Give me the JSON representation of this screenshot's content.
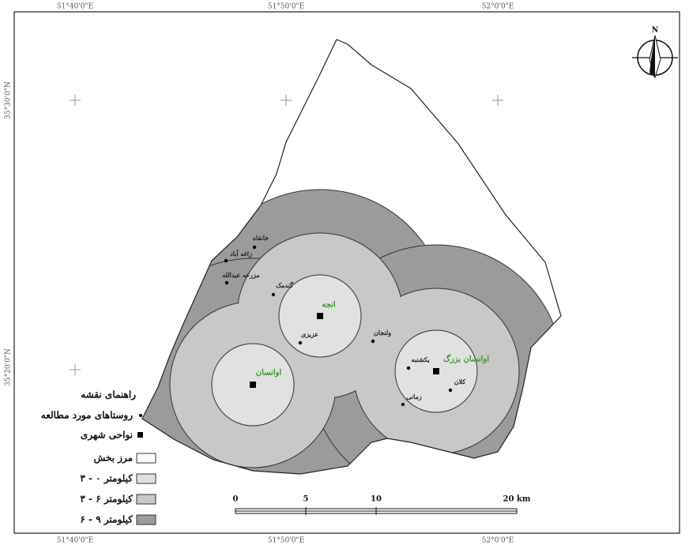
{
  "coordinates": {
    "top": [
      "51°40'0\"E",
      "51°50'0\"E",
      "52°0'0\"E"
    ],
    "bottom": [
      "51°40'0\"E",
      "51°50'0\"E",
      "52°0'0\"E"
    ],
    "left": [
      "35°30'0\"N",
      "35°20'0\"N"
    ]
  },
  "north_label": "N",
  "places": {
    "towns": [
      "انجه",
      "اوانسان",
      "اوانسان بزرگ"
    ],
    "villages": [
      "خانقاه",
      "زاغه آباد",
      "مزرعه عبدالله",
      "گندمک",
      "عزیزی",
      "ولنجان",
      "یکشنبه",
      "کلان",
      "زمانی"
    ]
  },
  "legend": {
    "title": "راهنمای نقشه",
    "items": [
      "روستاهای مورد مطالعه",
      "نواحی شهری",
      "مرز بخش",
      "۳ - ۰ کیلومتر",
      "۳ - ۶ کیلومتر",
      "۶ - ۹ کیلومتر"
    ]
  },
  "scale": {
    "labels": [
      "0",
      "5",
      "10",
      "20 km"
    ]
  }
}
